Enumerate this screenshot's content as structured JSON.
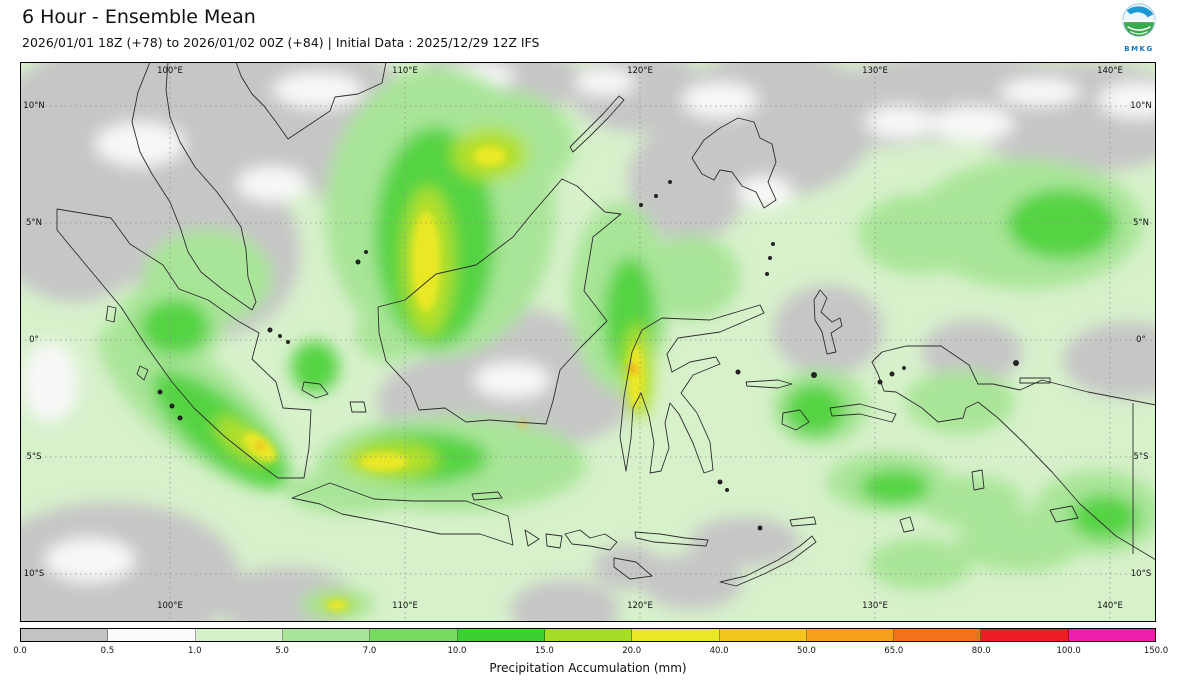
{
  "header": {
    "title": "6 Hour - Ensemble Mean",
    "subtitle": "2026/01/01 18Z (+78) to 2026/01/02 00Z (+84) | Initial Data : 2025/12/29 12Z IFS"
  },
  "logo": {
    "caption": "BMKG"
  },
  "map": {
    "region": "Indonesia and surrounding seas",
    "lon_ticks": [
      "100°E",
      "110°E",
      "120°E",
      "130°E",
      "140°E"
    ],
    "lat_ticks": [
      "10°N",
      "5°N",
      "0°",
      "5°S",
      "10°S"
    ],
    "grid_style": "dotted"
  },
  "colorbar": {
    "label": "Precipitation Accumulation (mm)",
    "tick_labels": [
      "0.0",
      "0.5",
      "1.0",
      "5.0",
      "7.0",
      "10.0",
      "15.0",
      "20.0",
      "40.0",
      "50.0",
      "65.0",
      "80.0",
      "100.0",
      "150.0"
    ],
    "colors": [
      "#c3c3c3",
      "#fbfbfb",
      "#d5f1c9",
      "#a9e598",
      "#77db60",
      "#3ecf33",
      "#a6dd28",
      "#eae826",
      "#f3c51e",
      "#f6a01c",
      "#f3721d",
      "#ee1d24",
      "#ec1fad"
    ]
  }
}
